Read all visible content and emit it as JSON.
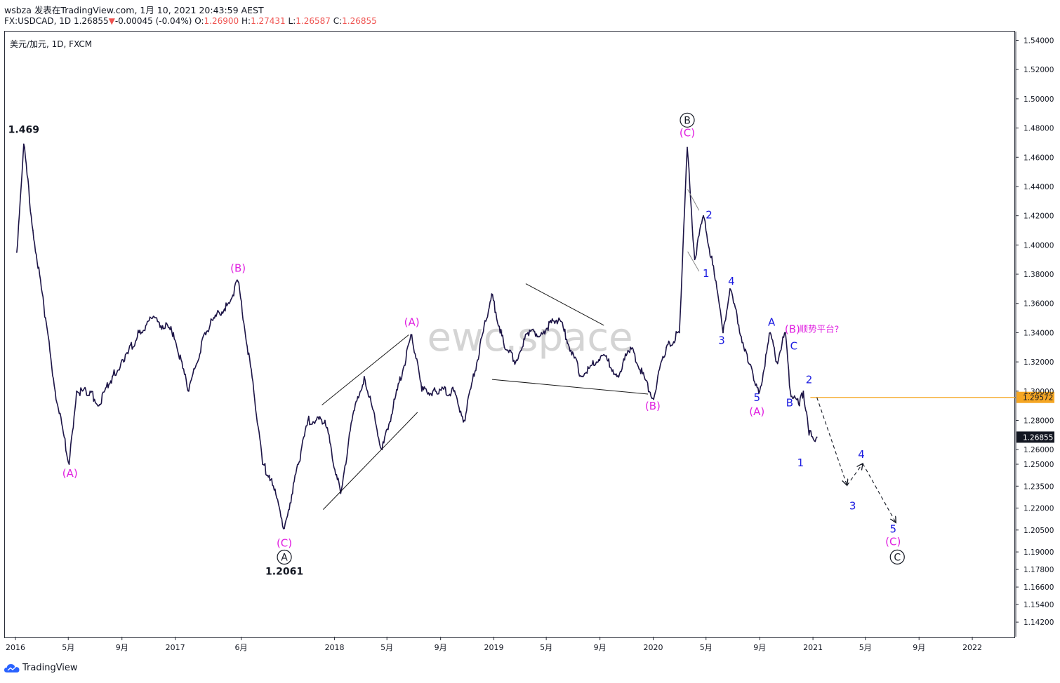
{
  "header": {
    "author": "wsbza",
    "published": "发表在TradingView.com, 1月 10, 2021 20:43:59 AEST",
    "symbol_line": {
      "symbol": "FX:USDCAD, 1D",
      "last": "1.26855",
      "change": "-0.00045 (-0.04%)",
      "open_label": "O:",
      "open": "1.26900",
      "high_label": "H:",
      "high": "1.27431",
      "low_label": "L:",
      "low": "1.26587",
      "close_label": "C:",
      "close": "1.26855"
    }
  },
  "pane_title": "美元/加元, 1D, FXCM",
  "watermark": "ewc.space",
  "footer": {
    "brand": "TradingView"
  },
  "colors": {
    "candle": "#1c1446",
    "wave_magenta": "#e020e0",
    "wave_blue": "#1a1ae0",
    "orange_line": "#f5a623",
    "last_price_bg": "#131722",
    "watermark": "#d4d4d4"
  },
  "chart_data": {
    "type": "line",
    "title": "",
    "y_axis": {
      "position": "right",
      "ylim": [
        1.132,
        1.546
      ],
      "ticks": [
        "1.54000",
        "1.52000",
        "1.50000",
        "1.48000",
        "1.46000",
        "1.44000",
        "1.42000",
        "1.40000",
        "1.38000",
        "1.36000",
        "1.34000",
        "1.32000",
        "1.30000",
        "1.28000",
        "1.26000",
        "1.25000",
        "1.23500",
        "1.22000",
        "1.20500",
        "1.19000",
        "1.17800",
        "1.16600",
        "1.15400",
        "1.14200"
      ]
    },
    "x_axis": {
      "ticks": [
        "2016",
        "5月",
        "9月",
        "2017",
        "6月",
        "2018",
        "5月",
        "9月",
        "2019",
        "5月",
        "9月",
        "2020",
        "5月",
        "9月",
        "2021",
        "5月",
        "9月",
        "2022"
      ]
    },
    "price_labels": [
      {
        "value": 1.29572,
        "text": "1.29572",
        "style": "orange"
      },
      {
        "value": 1.26855,
        "text": "1.26855",
        "style": "last"
      }
    ],
    "series": [
      {
        "name": "",
        "x": [
          "2016-01-04",
          "2016-01-20",
          "2016-02-10",
          "2016-03-10",
          "2016-04-01",
          "2016-05-03",
          "2016-05-20",
          "2016-06-20",
          "2016-07-10",
          "2016-08-10",
          "2016-09-05",
          "2016-10-10",
          "2016-11-10",
          "2016-12-28",
          "2017-02-01",
          "2017-03-10",
          "2017-04-01",
          "2017-05-05",
          "2017-05-25",
          "2017-06-30",
          "2017-07-20",
          "2017-08-10",
          "2017-09-08",
          "2017-10-10",
          "2017-11-01",
          "2017-12-10",
          "2018-01-15",
          "2018-02-10",
          "2018-03-10",
          "2018-04-20",
          "2018-06-27",
          "2018-07-20",
          "2018-08-20",
          "2018-10-01",
          "2018-10-25",
          "2018-12-27",
          "2019-01-25",
          "2019-02-20",
          "2019-03-20",
          "2019-04-20",
          "2019-05-30",
          "2019-07-20",
          "2019-09-10",
          "2019-10-10",
          "2019-11-10",
          "2019-12-31",
          "2020-01-31",
          "2020-03-01",
          "2020-03-19",
          "2020-04-05",
          "2020-04-25",
          "2020-05-20",
          "2020-06-09",
          "2020-06-25",
          "2020-07-15",
          "2020-08-05",
          "2020-09-01",
          "2020-09-25",
          "2020-10-10",
          "2020-10-30",
          "2020-11-10",
          "2020-12-01",
          "2020-12-10",
          "2020-12-23",
          "2021-01-10"
        ],
        "y": [
          1.395,
          1.469,
          1.41,
          1.35,
          1.3,
          1.25,
          1.3,
          1.3,
          1.29,
          1.31,
          1.32,
          1.34,
          1.35,
          1.34,
          1.3,
          1.34,
          1.35,
          1.36,
          1.375,
          1.3,
          1.25,
          1.24,
          1.2061,
          1.25,
          1.28,
          1.28,
          1.23,
          1.28,
          1.31,
          1.26,
          1.3385,
          1.3,
          1.3,
          1.3,
          1.28,
          1.3665,
          1.33,
          1.32,
          1.34,
          1.34,
          1.35,
          1.31,
          1.325,
          1.31,
          1.33,
          1.2951,
          1.33,
          1.34,
          1.4667,
          1.39,
          1.42,
          1.38,
          1.34,
          1.37,
          1.345,
          1.32,
          1.3,
          1.34,
          1.32,
          1.34,
          1.3,
          1.29,
          1.3,
          1.27,
          1.26855
        ]
      }
    ],
    "projection": {
      "x": [
        "2021-01-10",
        "2021-03-20",
        "2021-04-25",
        "2021-07-10"
      ],
      "y": [
        1.2957,
        1.2355,
        1.2505,
        1.21
      ]
    },
    "trendlines": [
      {
        "x": [
          "2017-12-03",
          "2018-06-20"
        ],
        "y": [
          1.2905,
          1.3385
        ]
      },
      {
        "x": [
          "2017-12-06",
          "2018-07-10"
        ],
        "y": [
          1.219,
          1.2855
        ]
      },
      {
        "x": [
          "2018-12-28",
          "2019-12-20"
        ],
        "y": [
          1.308,
          1.298
        ]
      },
      {
        "x": [
          "2019-03-15",
          "2019-09-10"
        ],
        "y": [
          1.3735,
          1.345
        ]
      },
      {
        "x": [
          "2020-03-20",
          "2020-04-15"
        ],
        "y": [
          1.438,
          1.4236
        ]
      },
      {
        "x": [
          "2020-03-20",
          "2020-04-15"
        ],
        "y": [
          1.3955,
          1.382
        ]
      }
    ],
    "annotations": [
      {
        "x": "2016-01-20",
        "y": 1.469,
        "dy": -16,
        "text": "1.469",
        "style": "price"
      },
      {
        "x": "2016-05-05",
        "y": 1.25,
        "dy": 18,
        "text": "(A)",
        "style": "magenta"
      },
      {
        "x": "2017-05-25",
        "y": 1.375,
        "dy": -14,
        "text": "(B)",
        "style": "magenta"
      },
      {
        "x": "2017-09-08",
        "y": 1.2061,
        "dy": 26,
        "text": "(C)",
        "style": "magenta"
      },
      {
        "x": "2017-09-08",
        "y": 1.2061,
        "dy": 46,
        "text": "A",
        "style": "circle"
      },
      {
        "x": "2017-09-08",
        "y": 1.2061,
        "dy": 66,
        "text": "1.2061",
        "style": "price"
      },
      {
        "x": "2018-06-27",
        "y": 1.3385,
        "dy": -13,
        "text": "(A)",
        "style": "magenta"
      },
      {
        "x": "2019-12-31",
        "y": 1.2951,
        "dy": 16,
        "text": "(B)",
        "style": "magenta"
      },
      {
        "x": "2020-03-19",
        "y": 1.4667,
        "dy": -16,
        "text": "(C)",
        "style": "magenta"
      },
      {
        "x": "2020-03-19",
        "y": 1.4667,
        "dy": -34,
        "text": "B",
        "style": "circle"
      },
      {
        "x": "2020-04-25",
        "y": 1.42,
        "dy": 4,
        "dx": 8,
        "text": "2",
        "style": "blue"
      },
      {
        "x": "2020-04-15",
        "y": 1.382,
        "dy": 8,
        "dx": 10,
        "text": "1",
        "style": "blue"
      },
      {
        "x": "2020-06-09",
        "y": 1.34,
        "dy": 16,
        "dx": -2,
        "text": "3",
        "style": "blue"
      },
      {
        "x": "2020-06-25",
        "y": 1.37,
        "dy": -6,
        "dx": 2,
        "text": "4",
        "style": "blue"
      },
      {
        "x": "2020-09-01",
        "y": 1.3,
        "dy": 14,
        "dx": -4,
        "text": "5",
        "style": "blue"
      },
      {
        "x": "2020-09-01",
        "y": 1.3,
        "dy": 34,
        "dx": -4,
        "text": "(A)",
        "style": "magenta"
      },
      {
        "x": "2020-09-25",
        "y": 1.34,
        "dy": -10,
        "dx": 2,
        "text": "A",
        "style": "blue"
      },
      {
        "x": "2020-10-30",
        "y": 1.34,
        "dy": 0,
        "dx": 10,
        "text": "(B)",
        "style": "magenta"
      },
      {
        "x": "2020-10-30",
        "y": 1.34,
        "dy": -1,
        "dx": 48,
        "text": "顺势平台?",
        "style": "magenta-small"
      },
      {
        "x": "2020-10-30",
        "y": 1.34,
        "dy": 24,
        "dx": 12,
        "text": "C",
        "style": "blue"
      },
      {
        "x": "2020-10-30",
        "y": 1.34,
        "dy": 105,
        "dx": 6,
        "text": "B",
        "style": "blue"
      },
      {
        "x": "2020-12-23",
        "y": 1.27,
        "dy": -74,
        "dx": 0,
        "text": "2",
        "style": "blue"
      },
      {
        "x": "2020-12-10",
        "y": 1.26,
        "dy": 24,
        "dx": -4,
        "text": "1",
        "style": "blue"
      },
      {
        "x": "2021-03-20",
        "y": 1.2355,
        "dy": 34,
        "dx": 8,
        "text": "3",
        "style": "blue"
      },
      {
        "x": "2021-04-25",
        "y": 1.2505,
        "dy": -8,
        "dx": -2,
        "text": "4",
        "style": "blue"
      },
      {
        "x": "2021-07-10",
        "y": 1.21,
        "dy": 14,
        "dx": -4,
        "text": "5",
        "style": "blue"
      },
      {
        "x": "2021-07-10",
        "y": 1.21,
        "dy": 32,
        "dx": -4,
        "text": "(C)",
        "style": "magenta"
      },
      {
        "x": "2021-07-10",
        "y": 1.21,
        "dy": 54,
        "dx": 2,
        "text": "C",
        "style": "circle"
      }
    ]
  }
}
